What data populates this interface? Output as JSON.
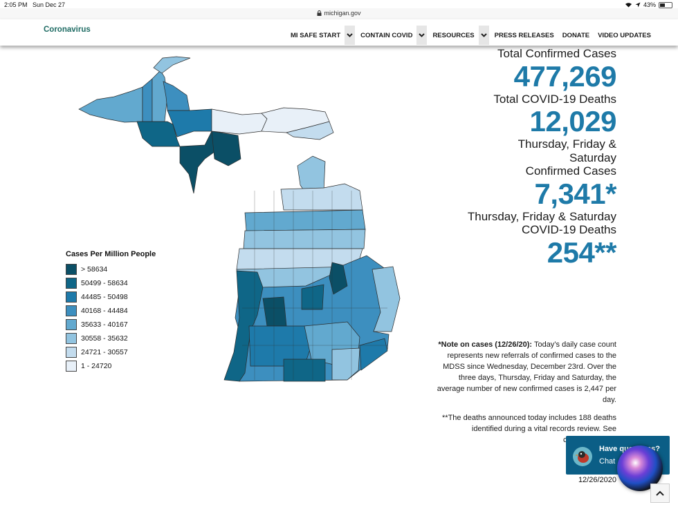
{
  "status_bar": {
    "time": "2:05 PM",
    "date": "Sun Dec 27",
    "battery": "43%",
    "battery_level": 0.43
  },
  "browser": {
    "url": "michigan.gov"
  },
  "header": {
    "brand": "Coronavirus",
    "nav": [
      {
        "label": "MI SAFE START",
        "dropdown": true
      },
      {
        "label": "CONTAIN COVID",
        "dropdown": true
      },
      {
        "label": "RESOURCES",
        "dropdown": true
      },
      {
        "label": "PRESS RELEASES",
        "dropdown": false
      },
      {
        "label": "DONATE",
        "dropdown": false
      },
      {
        "label": "VIDEO UPDATES",
        "dropdown": false
      }
    ]
  },
  "legend": {
    "title": "Cases Per Million People",
    "items": [
      {
        "label": "> 58634",
        "color": "#0b4f66"
      },
      {
        "label": "50499 - 58634",
        "color": "#0f6687"
      },
      {
        "label": "44485 - 50498",
        "color": "#1e7aaa"
      },
      {
        "label": "40168 - 44484",
        "color": "#3d8fbf"
      },
      {
        "label": "35633 - 40167",
        "color": "#62a9cf"
      },
      {
        "label": "30558 - 35632",
        "color": "#92c4e0"
      },
      {
        "label": "24721 - 30557",
        "color": "#c3dcee"
      },
      {
        "label": "1 - 24720",
        "color": "#e8f0f8"
      }
    ]
  },
  "stats": {
    "total_cases_label": "Total Confirmed Cases",
    "total_cases": "477,269",
    "total_deaths_label": "Total COVID-19 Deaths",
    "total_deaths": "12,029",
    "recent_cases_label_1": "Thursday, Friday &",
    "recent_cases_label_2": "Saturday",
    "recent_cases_label_3": "Confirmed Cases",
    "recent_cases": "7,341*",
    "recent_deaths_label_1": "Thursday, Friday & Saturday",
    "recent_deaths_label_2": "COVID-19 Deaths",
    "recent_deaths": "254**"
  },
  "notes": {
    "note1_bold": "*Note on cases (12/26/20):",
    "note1_text": "Today’s daily case count represents new referrals of confirmed cases to the MDSS since Wednesday, December 23rd.  Over the three days, Thursday, Friday and Saturday, the average number of new confirmed cases is 2,447 per day.",
    "note2_text": "**The deaths announced today includes 188 deaths identified during a vital records review. See cumulative data",
    "date": "12/26/2020"
  },
  "chat": {
    "line1": "Have questions?",
    "line2": "Chat"
  },
  "map": {
    "colors": {
      "c1": "#0b4f66",
      "c2": "#0f6687",
      "c3": "#1e7aaa",
      "c4": "#3d8fbf",
      "c5": "#62a9cf",
      "c6": "#92c4e0",
      "c7": "#c3dcee",
      "c8": "#e8f0f8"
    }
  }
}
